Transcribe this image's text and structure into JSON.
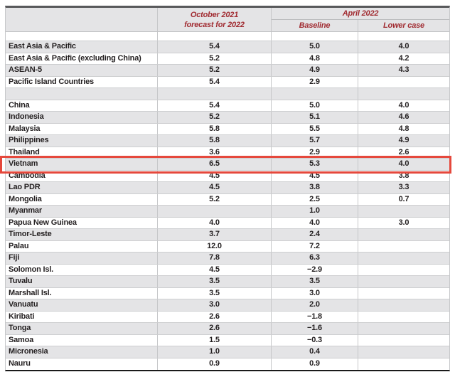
{
  "colors": {
    "header_text": "#a12c32",
    "row_shade": "#e4e4e6",
    "highlight_border": "#e5483c",
    "top_border": "#58595b",
    "bottom_border": "#1a1a1a"
  },
  "header": {
    "october_line1": "October 2021",
    "october_line2": "forecast for 2022",
    "april_group": "April 2022",
    "baseline": "Baseline",
    "lower_case": "Lower case"
  },
  "chart_data": {
    "type": "table",
    "columns": [
      "",
      "October 2021 forecast for 2022",
      "April 2022 — Baseline",
      "April 2022 — Lower case"
    ],
    "highlighted_row": "Vietnam",
    "rows": [
      {
        "spacer": true,
        "name": "",
        "oct_2021": "",
        "baseline": "",
        "lower_case": ""
      },
      {
        "name": "East Asia & Pacific",
        "oct_2021": "5.4",
        "baseline": "5.0",
        "lower_case": "4.0"
      },
      {
        "name": "East Asia & Pacific (excluding China)",
        "oct_2021": "5.2",
        "baseline": "4.8",
        "lower_case": "4.2"
      },
      {
        "name": "ASEAN-5",
        "oct_2021": "5.2",
        "baseline": "4.9",
        "lower_case": "4.3"
      },
      {
        "name": "Pacific Island Countries",
        "oct_2021": "5.4",
        "baseline": "2.9",
        "lower_case": ""
      },
      {
        "spacer": true,
        "name": "",
        "oct_2021": "",
        "baseline": "",
        "lower_case": ""
      },
      {
        "name": "China",
        "oct_2021": "5.4",
        "baseline": "5.0",
        "lower_case": "4.0"
      },
      {
        "name": "Indonesia",
        "oct_2021": "5.2",
        "baseline": "5.1",
        "lower_case": "4.6"
      },
      {
        "name": "Malaysia",
        "oct_2021": "5.8",
        "baseline": "5.5",
        "lower_case": "4.8"
      },
      {
        "name": "Philippines",
        "oct_2021": "5.8",
        "baseline": "5.7",
        "lower_case": "4.9"
      },
      {
        "name": "Thailand",
        "oct_2021": "3.6",
        "baseline": "2.9",
        "lower_case": "2.6"
      },
      {
        "name": "Vietnam",
        "oct_2021": "6.5",
        "baseline": "5.3",
        "lower_case": "4.0",
        "highlight": true
      },
      {
        "name": "Cambodia",
        "oct_2021": "4.5",
        "baseline": "4.5",
        "lower_case": "3.8"
      },
      {
        "name": "Lao PDR",
        "oct_2021": "4.5",
        "baseline": "3.8",
        "lower_case": "3.3"
      },
      {
        "name": "Mongolia",
        "oct_2021": "5.2",
        "baseline": "2.5",
        "lower_case": "0.7"
      },
      {
        "name": "Myanmar",
        "oct_2021": "",
        "baseline": "1.0",
        "lower_case": ""
      },
      {
        "name": "Papua New Guinea",
        "oct_2021": "4.0",
        "baseline": "4.0",
        "lower_case": "3.0"
      },
      {
        "name": "Timor-Leste",
        "oct_2021": "3.7",
        "baseline": "2.4",
        "lower_case": ""
      },
      {
        "name": "Palau",
        "oct_2021": "12.0",
        "baseline": "7.2",
        "lower_case": ""
      },
      {
        "name": "Fiji",
        "oct_2021": "7.8",
        "baseline": "6.3",
        "lower_case": ""
      },
      {
        "name": "Solomon Isl.",
        "oct_2021": "4.5",
        "baseline": "−2.9",
        "lower_case": ""
      },
      {
        "name": "Tuvalu",
        "oct_2021": "3.5",
        "baseline": "3.5",
        "lower_case": ""
      },
      {
        "name": "Marshall Isl.",
        "oct_2021": "3.5",
        "baseline": "3.0",
        "lower_case": ""
      },
      {
        "name": "Vanuatu",
        "oct_2021": "3.0",
        "baseline": "2.0",
        "lower_case": ""
      },
      {
        "name": "Kiribati",
        "oct_2021": "2.6",
        "baseline": "−1.8",
        "lower_case": ""
      },
      {
        "name": "Tonga",
        "oct_2021": "2.6",
        "baseline": "−1.6",
        "lower_case": ""
      },
      {
        "name": "Samoa",
        "oct_2021": "1.5",
        "baseline": "−0.3",
        "lower_case": ""
      },
      {
        "name": "Micronesia",
        "oct_2021": "1.0",
        "baseline": "0.4",
        "lower_case": ""
      },
      {
        "name": "Nauru",
        "oct_2021": "0.9",
        "baseline": "0.9",
        "lower_case": ""
      }
    ]
  }
}
